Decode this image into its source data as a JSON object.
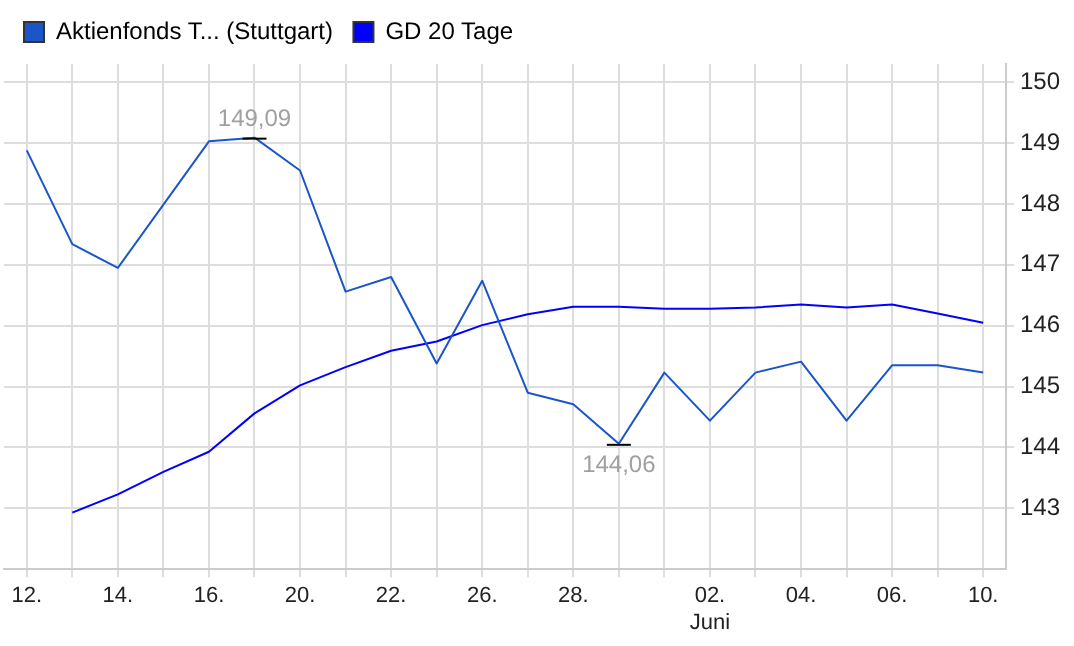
{
  "chart_data": {
    "type": "line",
    "categories": [
      "12.",
      null,
      "14.",
      null,
      "16.",
      null,
      "20.",
      null,
      "22.",
      null,
      "26.",
      null,
      "28.",
      null,
      null,
      "02.\nJuni",
      null,
      "04.",
      null,
      "06.",
      null,
      "10."
    ],
    "series": [
      {
        "name": "Aktienfonds T... (Stuttgart)",
        "color": "#1a56c8",
        "values": [
          148.88,
          147.34,
          146.95,
          147.99,
          149.03,
          149.09,
          148.55,
          146.56,
          146.8,
          145.38,
          146.74,
          144.9,
          144.71,
          144.06,
          145.23,
          144.44,
          145.23,
          145.41,
          144.44,
          145.35,
          145.35,
          145.23
        ],
        "value_labels": [
          null,
          null,
          null,
          null,
          null,
          "149,09",
          null,
          null,
          null,
          null,
          null,
          null,
          null,
          "144,06",
          null,
          null,
          null,
          null,
          null,
          null,
          null,
          null
        ]
      },
      {
        "name": "GD 20 Tage",
        "color": "#0000ff",
        "values": [
          null,
          142.93,
          143.23,
          143.6,
          143.93,
          144.56,
          145.02,
          145.32,
          145.59,
          145.74,
          146.01,
          146.19,
          146.31,
          146.31,
          146.28,
          146.28,
          146.3,
          146.35,
          146.3,
          146.35,
          146.2,
          146.05
        ]
      }
    ],
    "ylim": [
      142,
      150.3
    ],
    "yticks": [
      143,
      144,
      145,
      146,
      147,
      148,
      149,
      150
    ],
    "grid": true,
    "legend": "top left",
    "marker": "none",
    "line_style": "solid"
  }
}
